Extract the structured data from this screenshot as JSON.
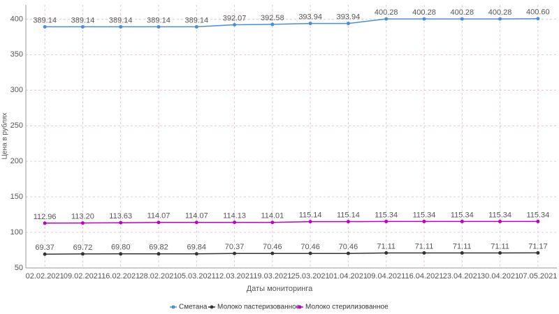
{
  "chart_data": {
    "type": "line",
    "x_label": "Даты мониторинга",
    "y_label": "Цена в рублях",
    "categories": [
      "02.02.2021",
      "09.02.2021",
      "16.02.2021",
      "28.02.2021",
      "05.03.2021",
      "12.03.2021",
      "19.03.2021",
      "25.03.2021",
      "01.04.2021",
      "09.04.2021",
      "16.04.2021",
      "23.04.2021",
      "30.04.2021",
      "07.05.2021"
    ],
    "series": [
      {
        "name": "Сметана",
        "color": "#4a8fd6",
        "values": [
          389.14,
          389.14,
          389.14,
          389.14,
          389.14,
          392.07,
          392.58,
          393.94,
          393.94,
          400.28,
          400.28,
          400.28,
          400.28,
          400.6
        ],
        "value_labels": [
          "389.14",
          "389.14",
          "389.14",
          "389.14",
          "389.14",
          "392.07",
          "392.58",
          "393.94",
          "393.94",
          "400.28",
          "400.28",
          "400.28",
          "400.28",
          "400.60"
        ]
      },
      {
        "name": "Молоко пастеризованное",
        "color": "#333333",
        "values": [
          69.37,
          69.72,
          69.8,
          69.82,
          69.84,
          70.37,
          70.46,
          70.46,
          70.46,
          71.11,
          71.11,
          71.11,
          71.11,
          71.17
        ],
        "value_labels": [
          "69.37",
          "69.72",
          "69.80",
          "69.82",
          "69.84",
          "70.37",
          "70.46",
          "70.46",
          "70.46",
          "71.11",
          "71.11",
          "71.11",
          "71.11",
          "71.17"
        ]
      },
      {
        "name": "Молоко стерилизованное",
        "color": "#c000c0",
        "values": [
          112.96,
          113.2,
          113.63,
          114.07,
          114.07,
          114.13,
          114.01,
          115.14,
          115.14,
          115.34,
          115.34,
          115.34,
          115.34,
          115.34
        ],
        "value_labels": [
          "112.96",
          "113.20",
          "113.63",
          "114.07",
          "114.07",
          "114.13",
          "114.01",
          "115.14",
          "115.14",
          "115.34",
          "115.34",
          "115.34",
          "115.34",
          "115.34"
        ]
      }
    ],
    "ylim": [
      50,
      420
    ],
    "yticks": [
      50,
      100,
      150,
      200,
      250,
      300,
      350,
      400
    ],
    "grid": true,
    "legend": "bottom"
  }
}
